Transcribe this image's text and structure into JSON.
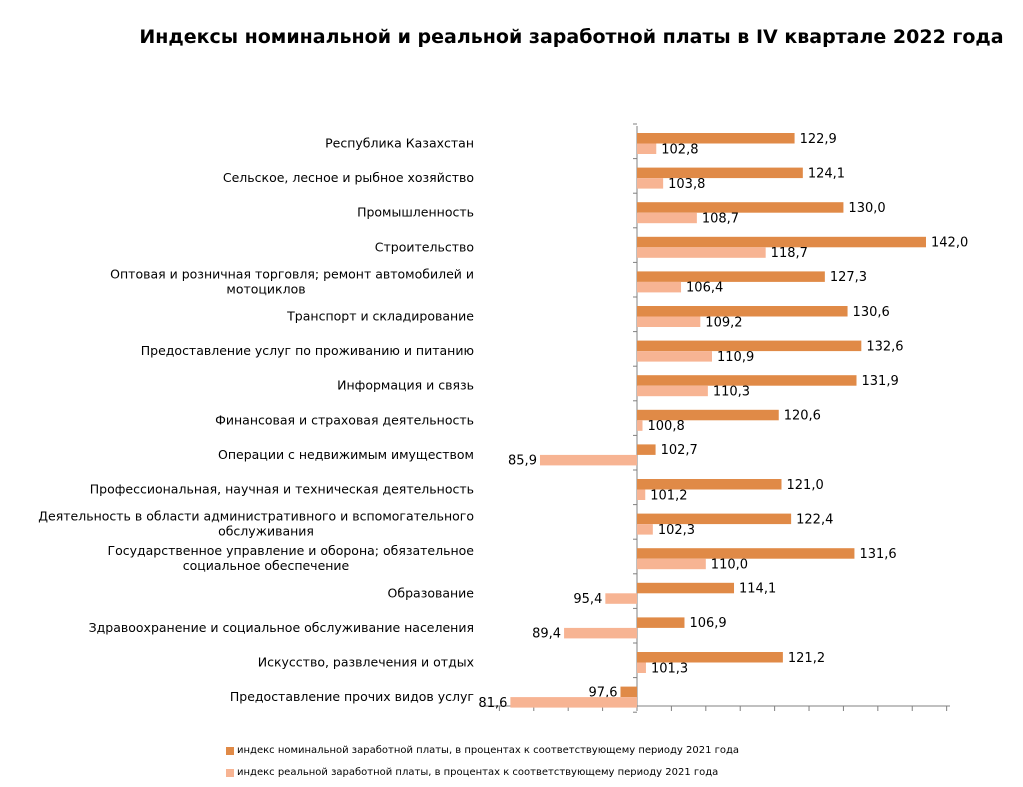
{
  "colors": {
    "nominal": "#E08A47",
    "real": "#F7B493",
    "axis": "#808080"
  },
  "chart_data": {
    "type": "bar",
    "orientation": "horizontal",
    "title": "Индексы номинальной и реальной заработной платы в IV квартале 2022 года",
    "baseline": 100,
    "xlim": [
      60,
      145
    ],
    "grid": false,
    "legend_position": "bottom",
    "categories": [
      "Республика Казахстан",
      "Сельское, лесное и рыбное хозяйство",
      "Промышленность",
      "Строительство",
      "Оптовая и розничная торговля; ремонт автомобилей и мотоциклов",
      "Транспорт и складирование",
      "Предоставление услуг по проживанию и питанию",
      "Информация и связь",
      "Финансовая и страховая деятельность",
      "Операции с недвижимым имуществом",
      "Профессиональная, научная и техническая деятельность",
      "Деятельность в области административного и вспомогательного обслуживания",
      "Государственное управление и оборона; обязательное социальное обеспечение",
      "Образование",
      "Здравоохранение и социальное обслуживание населения",
      "Искусство, развлечения и отдых",
      "Предоставление прочих видов услуг"
    ],
    "category_lines": [
      [
        "Республика Казахстан"
      ],
      [
        "Сельское, лесное и рыбное хозяйство"
      ],
      [
        "Промышленность"
      ],
      [
        "Строительство"
      ],
      [
        "Оптовая и розничная торговля; ремонт автомобилей и",
        "мотоциклов"
      ],
      [
        "Транспорт и складирование"
      ],
      [
        "Предоставление услуг по проживанию и питанию"
      ],
      [
        "Информация и связь"
      ],
      [
        "Финансовая и страховая деятельность"
      ],
      [
        "Операции с недвижимым имуществом"
      ],
      [
        "Профессиональная, научная и техническая деятельность"
      ],
      [
        "Деятельность в области административного и вспомогательного",
        "обслуживания"
      ],
      [
        "Государственное управление и оборона; обязательное",
        "социальное обеспечение"
      ],
      [
        "Образование"
      ],
      [
        "Здравоохранение и социальное обслуживание населения"
      ],
      [
        "Искусство, развлечения и отдых"
      ],
      [
        "Предоставление прочих видов услуг"
      ]
    ],
    "series": [
      {
        "key": "nominal",
        "name": "индекс номинальной заработной платы, в процентах к соответствующему периоду 2021 года",
        "values": [
          122.9,
          124.1,
          130.0,
          142.0,
          127.3,
          130.6,
          132.6,
          131.9,
          120.6,
          102.7,
          121.0,
          122.4,
          131.6,
          114.1,
          106.9,
          121.2,
          97.6
        ]
      },
      {
        "key": "real",
        "name": "индекс реальной заработной платы, в процентах к соответствующему периоду 2021 года",
        "values": [
          102.8,
          103.8,
          108.7,
          118.7,
          106.4,
          109.2,
          110.9,
          110.3,
          100.8,
          85.9,
          101.2,
          102.3,
          110.0,
          95.4,
          89.4,
          101.3,
          81.6
        ]
      }
    ],
    "data_labels": {
      "nominal": [
        "122,9",
        "124,1",
        "130,0",
        "142,0",
        "127,3",
        "130,6",
        "132,6",
        "131,9",
        "120,6",
        "102,7",
        "121,0",
        "122,4",
        "131,6",
        "114,1",
        "106,9",
        "121,2",
        "97,6"
      ],
      "real": [
        "102,8",
        "103,8",
        "108,7",
        "118,7",
        "106,4",
        "109,2",
        "110,9",
        "110,3",
        "100,8",
        "85,9",
        "101,2",
        "102,3",
        "110,0",
        "95,4",
        "89,4",
        "101,3",
        "81,6"
      ]
    }
  }
}
